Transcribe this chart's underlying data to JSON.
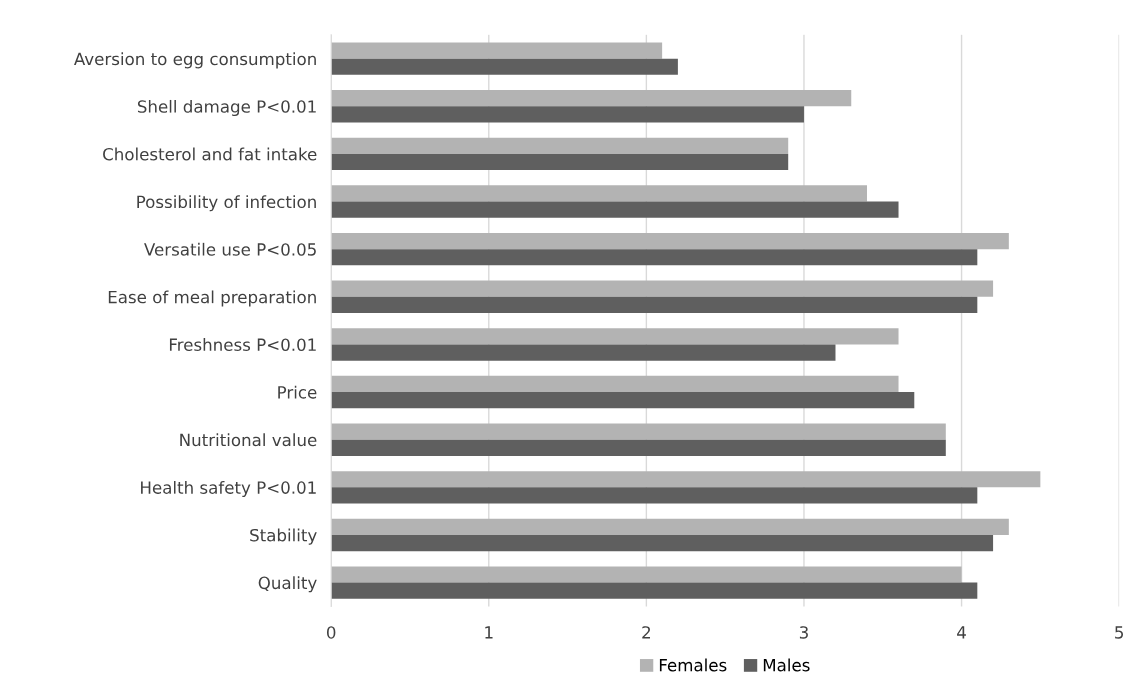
{
  "chart_data": {
    "type": "bar",
    "orientation": "horizontal",
    "categories": [
      "Aversion to egg consumption",
      "Shell damage P<0.01",
      "Cholesterol and fat intake",
      "Possibility of infection",
      "Versatile use P<0.05",
      "Ease of meal preparation",
      "Freshness P<0.01",
      "Price",
      "Nutritional value",
      "Health safety P<0.01",
      "Stability",
      "Quality"
    ],
    "series": [
      {
        "name": "Females",
        "color": "#b3b3b3",
        "values": [
          2.1,
          3.3,
          2.9,
          3.4,
          4.3,
          4.2,
          3.6,
          3.6,
          3.9,
          4.5,
          4.3,
          4.0
        ]
      },
      {
        "name": "Males",
        "color": "#5f5f5f",
        "values": [
          2.2,
          3.0,
          2.9,
          3.6,
          4.1,
          4.1,
          3.2,
          3.7,
          3.9,
          4.1,
          4.2,
          4.1
        ]
      }
    ],
    "xlim": [
      0,
      5
    ],
    "xticks": [
      0,
      1,
      2,
      3,
      4,
      5
    ],
    "grid": "x",
    "legend": "bottom"
  }
}
